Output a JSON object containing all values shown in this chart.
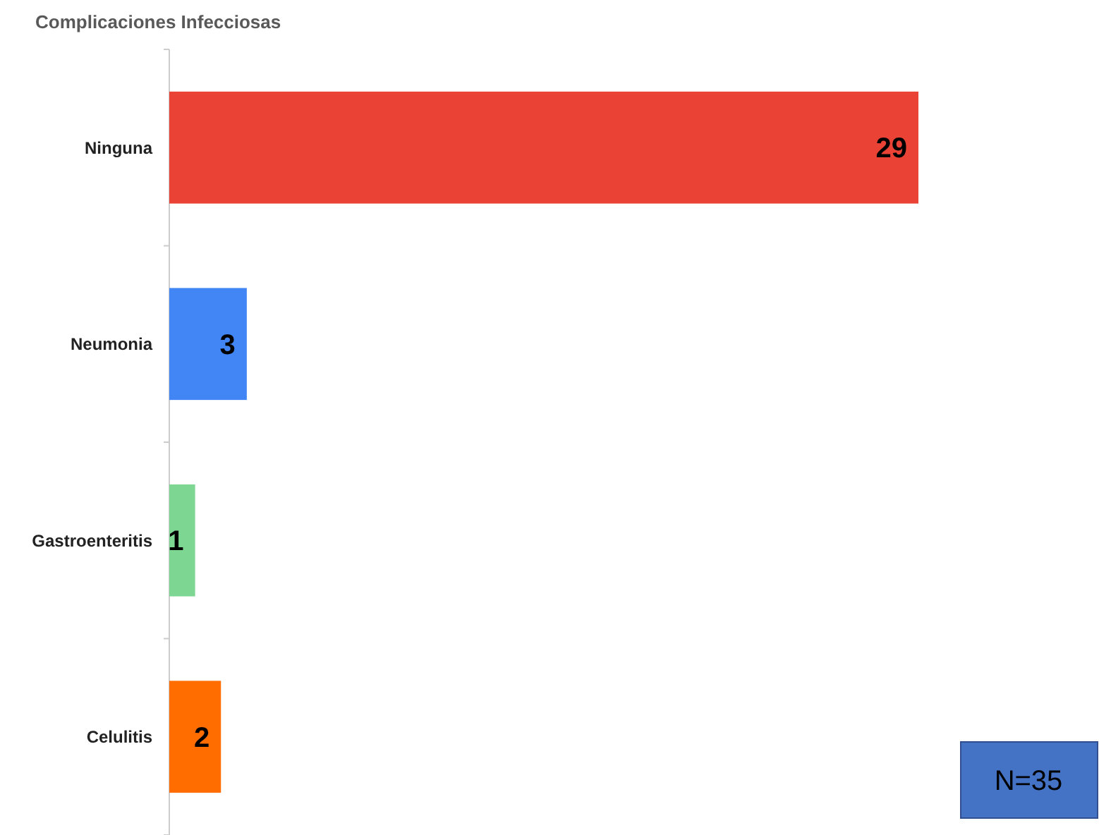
{
  "chart_data": {
    "type": "bar",
    "orientation": "horizontal",
    "title": "Complicaciones Infecciosas",
    "categories": [
      "Ninguna",
      "Neumonia",
      "Gastroenteritis",
      "Celulitis"
    ],
    "values": [
      29,
      3,
      1,
      2
    ],
    "colors": [
      "#ea4335",
      "#4285f4",
      "#7ed693",
      "#ff6d01"
    ],
    "data_labels": true,
    "grid": false,
    "annotations": [
      "N=35"
    ]
  }
}
